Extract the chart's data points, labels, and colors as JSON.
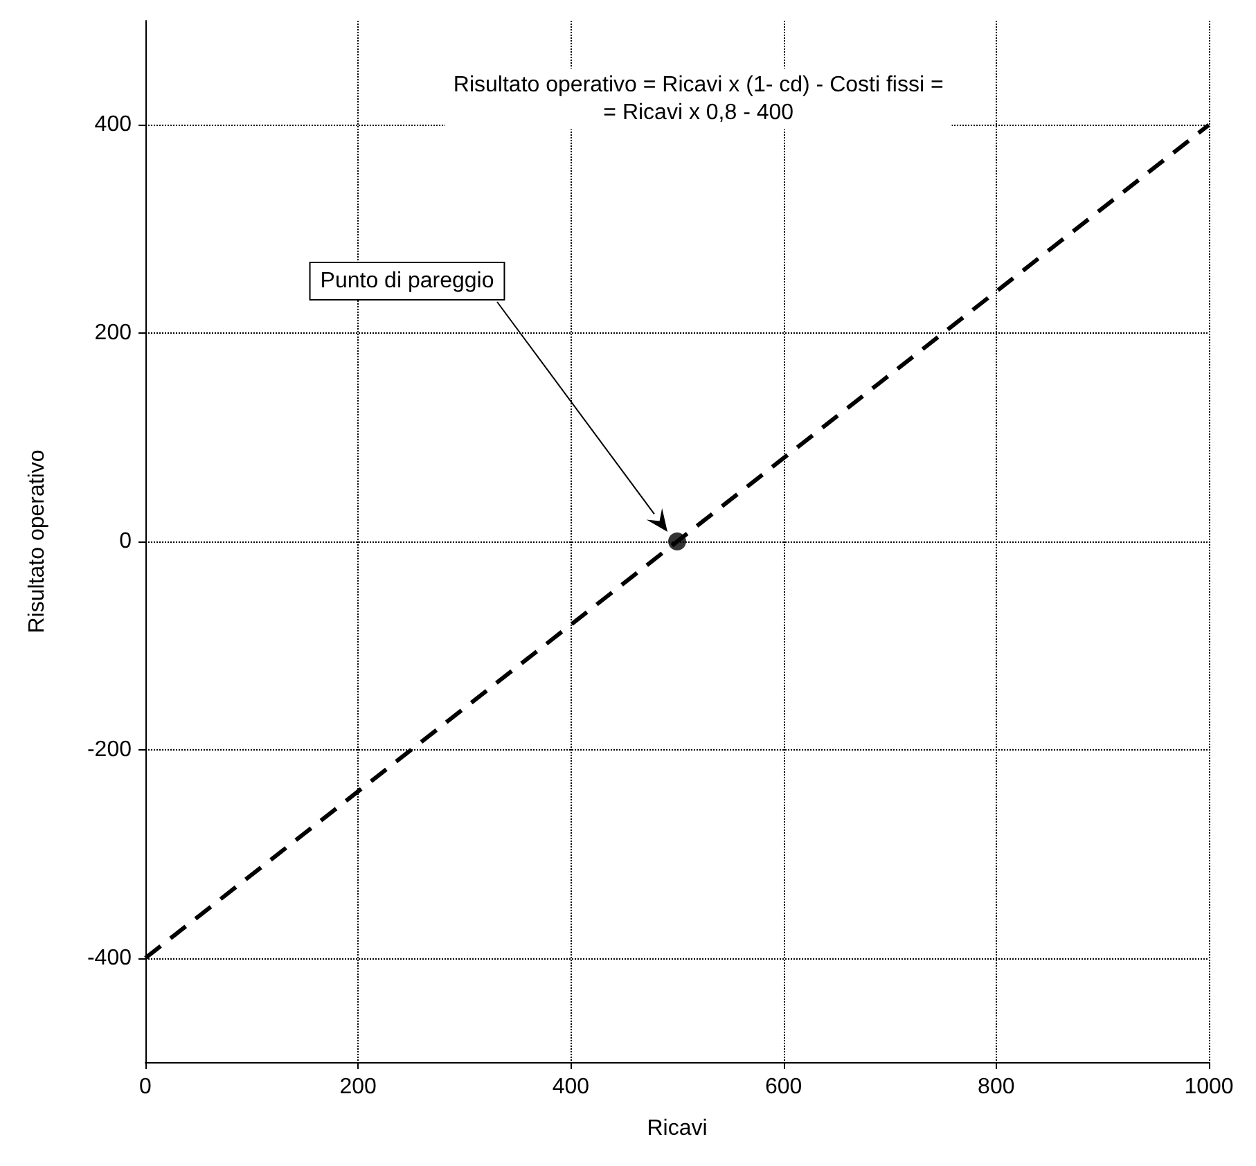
{
  "chart_data": {
    "type": "line",
    "xlabel": "Ricavi",
    "ylabel": "Risultato operativo",
    "xlim": [
      0,
      1000
    ],
    "xticks": [
      0,
      200,
      400,
      600,
      800,
      1000
    ],
    "ylim": [
      -500,
      500
    ],
    "yticks": [
      -400,
      -200,
      0,
      200,
      400
    ],
    "grid": true,
    "series": [
      {
        "color": "#000000",
        "x": [
          0,
          1000
        ],
        "values": [
          -400,
          400
        ],
        "line_style": "dashed",
        "marker": "none"
      },
      {
        "type": "scatter",
        "color": "#000000",
        "x": [
          500
        ],
        "values": [
          0
        ],
        "marker": "circle"
      }
    ],
    "annotations": [
      "Risultato operativo = Ricavi x (1- cd) - Costi fissi =\n= Ricavi x 0,8 - 400",
      "Punto di pareggio"
    ]
  }
}
